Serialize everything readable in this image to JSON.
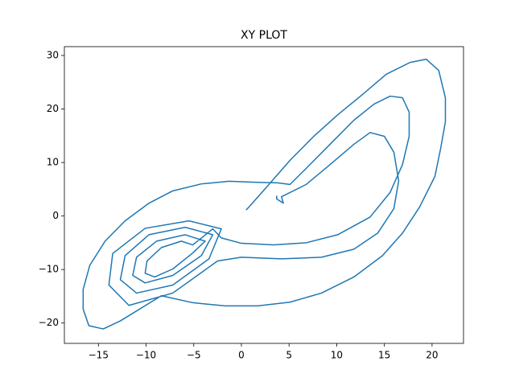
{
  "chart_data": {
    "type": "line",
    "title": "XY PLOT",
    "x": [
      0.5,
      2.5,
      5.1,
      7.6,
      10.1,
      12.7,
      15.2,
      17.7,
      19.4,
      20.7,
      21.4,
      21.4,
      20.9,
      20.3,
      18.7,
      16.9,
      14.8,
      11.8,
      8.4,
      5.1,
      1.7,
      -1.7,
      -5.1,
      -8.4,
      -12.7,
      -14.5,
      -16.0,
      -16.6,
      -16.6,
      -15.9,
      -14.3,
      -12.2,
      -9.7,
      -7.2,
      -4.2,
      -1.3,
      1.7,
      3.8,
      5.1,
      6.8,
      9.3,
      11.8,
      13.9,
      15.6,
      16.9,
      17.6,
      17.6,
      16.9,
      15.6,
      13.5,
      10.1,
      6.8,
      3.4,
      0,
      -2.1,
      -3.0,
      -5.1,
      -6.3,
      -8.4,
      -9.9,
      -10.1,
      -9.1,
      -7.2,
      -5.1,
      -3.8,
      -5.9,
      -8.9,
      -11.0,
      -11.4,
      -10.1,
      -7.2,
      -4.2,
      -3.0,
      -5.9,
      -9.7,
      -12.2,
      -12.7,
      -11.0,
      -7.2,
      -3.4,
      -2.1,
      -5.5,
      -10.1,
      -13.5,
      -13.9,
      -11.8,
      -7.2,
      -2.5,
      0,
      4.2,
      8.4,
      11.8,
      14.3,
      16.0,
      16.5,
      16.0,
      15.0,
      13.5,
      11.8,
      9.3,
      6.8,
      4.2,
      4.4,
      3.7,
      3.7
    ],
    "series": [
      {
        "color": "#1f77b4",
        "values": [
          1.1,
          5.1,
          10.4,
          14.9,
          18.9,
          22.7,
          26.5,
          28.7,
          29.3,
          27.2,
          22.1,
          17.6,
          12.6,
          7.4,
          1.7,
          -3.2,
          -7.4,
          -11.4,
          -14.4,
          -16.1,
          -16.8,
          -16.8,
          -16.2,
          -14.9,
          -19.6,
          -21.1,
          -20.5,
          -17.4,
          -13.7,
          -9.2,
          -4.7,
          -0.9,
          2.4,
          4.7,
          6.0,
          6.5,
          6.3,
          6.2,
          5.9,
          8.9,
          13.4,
          17.9,
          20.9,
          22.4,
          22.1,
          19.4,
          14.9,
          9.6,
          4.4,
          -0.2,
          -3.5,
          -5.0,
          -5.4,
          -5.1,
          -4.1,
          -2.4,
          -5.4,
          -4.7,
          -5.9,
          -8.4,
          -10.7,
          -11.4,
          -9.9,
          -6.9,
          -4.7,
          -3.5,
          -4.7,
          -7.7,
          -11.1,
          -12.5,
          -11.1,
          -7.4,
          -3.5,
          -2.1,
          -3.5,
          -7.4,
          -11.9,
          -14.4,
          -12.9,
          -8.0,
          -2.4,
          -0.9,
          -2.3,
          -7.0,
          -12.9,
          -16.7,
          -14.4,
          -8.4,
          -7.7,
          -8.0,
          -7.7,
          -6.2,
          -3.2,
          1.4,
          6.6,
          11.9,
          14.9,
          15.6,
          13.4,
          9.6,
          5.9,
          3.6,
          2.4,
          3.2,
          3.8
        ]
      }
    ],
    "xlim": [
      -18.57,
      23.3
    ],
    "ylim": [
      -23.8,
      31.65
    ],
    "xticks": [
      {
        "value": -15,
        "label": "−15"
      },
      {
        "value": -10,
        "label": "−10"
      },
      {
        "value": -5,
        "label": "−5"
      },
      0,
      5,
      10,
      15,
      20
    ],
    "yticks": [
      {
        "value": -20,
        "label": "−20"
      },
      {
        "value": -10,
        "label": "−10"
      },
      0,
      10,
      20,
      30
    ]
  }
}
